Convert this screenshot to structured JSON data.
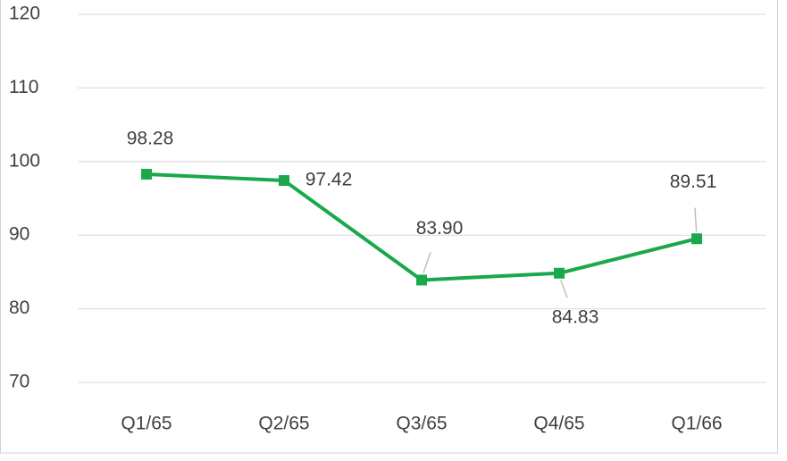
{
  "chart_data": {
    "type": "line",
    "categories": [
      "Q1/65",
      "Q2/65",
      "Q3/65",
      "Q4/65",
      "Q1/66"
    ],
    "series": [
      {
        "color": "#1aa84c",
        "values": [
          98.28,
          97.42,
          83.9,
          84.83,
          89.51
        ],
        "value_labels": [
          "98.28",
          "97.42",
          "83.90",
          "84.83",
          "89.51"
        ]
      }
    ],
    "ylim": [
      70,
      120
    ],
    "yticks": [
      70,
      80,
      90,
      100,
      110,
      120
    ],
    "grid": true
  }
}
